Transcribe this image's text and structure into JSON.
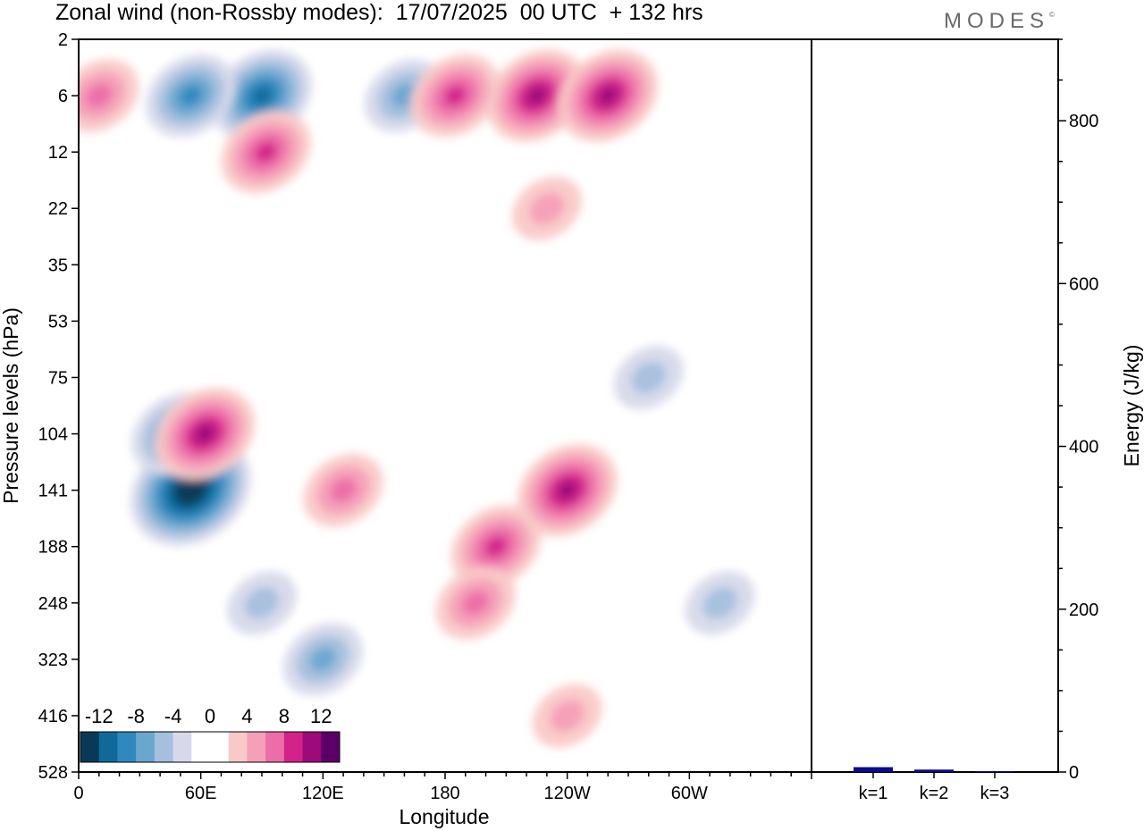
{
  "title": "Zonal wind (non-Rossby modes):  17/07/2025  00 UTC  + 132 hrs",
  "brand": "MODES",
  "brand_mark": "©",
  "colors": {
    "levels": [
      "#083a57",
      "#0f6a9a",
      "#2f88be",
      "#6aa7cf",
      "#a5c0de",
      "#d7d9ea",
      "#ffffff",
      "#ffffff",
      "#f9c9c7",
      "#f59fb8",
      "#ec6ea8",
      "#d3238a",
      "#9d0a7a",
      "#5c0069"
    ],
    "bar": "#0a0a8c"
  },
  "chart_data": [
    {
      "type": "heatmap",
      "xlabel": "Longitude",
      "ylabel": "Pressure levels (hPa)",
      "x_ticks": [
        "0",
        "60E",
        "120E",
        "180",
        "120W",
        "60W"
      ],
      "x_tick_degrees": [
        0,
        60,
        120,
        180,
        240,
        300
      ],
      "xlim": [
        0,
        360
      ],
      "y_ticks": [
        "2",
        "6",
        "12",
        "22",
        "35",
        "53",
        "75",
        "104",
        "141",
        "188",
        "248",
        "323",
        "416",
        "528"
      ],
      "colorbar_labels": [
        "-12",
        "-8",
        "-4",
        "0",
        "4",
        "8",
        "12"
      ],
      "features": [
        {
          "lon": 55,
          "level": "141",
          "value": -13
        },
        {
          "lon": 48,
          "level": "104",
          "value": -8
        },
        {
          "lon": 62,
          "level": "104",
          "value": 10
        },
        {
          "lon": 90,
          "level": "6",
          "value": -9
        },
        {
          "lon": 55,
          "level": "6",
          "value": -7
        },
        {
          "lon": 160,
          "level": "6",
          "value": -6
        },
        {
          "lon": 10,
          "level": "6",
          "value": 6
        },
        {
          "lon": 225,
          "level": "6",
          "value": 10
        },
        {
          "lon": 260,
          "level": "6",
          "value": 10
        },
        {
          "lon": 185,
          "level": "6",
          "value": 7
        },
        {
          "lon": 92,
          "level": "12",
          "value": 8
        },
        {
          "lon": 130,
          "level": "141",
          "value": 6
        },
        {
          "lon": 205,
          "level": "188",
          "value": 8
        },
        {
          "lon": 240,
          "level": "141",
          "value": 9
        },
        {
          "lon": 195,
          "level": "248",
          "value": 6
        },
        {
          "lon": 120,
          "level": "323",
          "value": -5
        },
        {
          "lon": 90,
          "level": "248",
          "value": -4
        },
        {
          "lon": 315,
          "level": "248",
          "value": -4
        },
        {
          "lon": 280,
          "level": "75",
          "value": -3
        },
        {
          "lon": 240,
          "level": "416",
          "value": 3
        },
        {
          "lon": 230,
          "level": "22",
          "value": 3
        }
      ]
    },
    {
      "type": "bar",
      "ylabel": "Energy (J/kg)",
      "categories": [
        "k=1",
        "k=2",
        "k=3"
      ],
      "values": [
        6,
        3,
        1
      ],
      "ylim": [
        0,
        900
      ],
      "y_ticks": [
        "0",
        "200",
        "400",
        "600",
        "800"
      ],
      "y_tick_values": [
        0,
        200,
        400,
        600,
        800
      ]
    }
  ]
}
